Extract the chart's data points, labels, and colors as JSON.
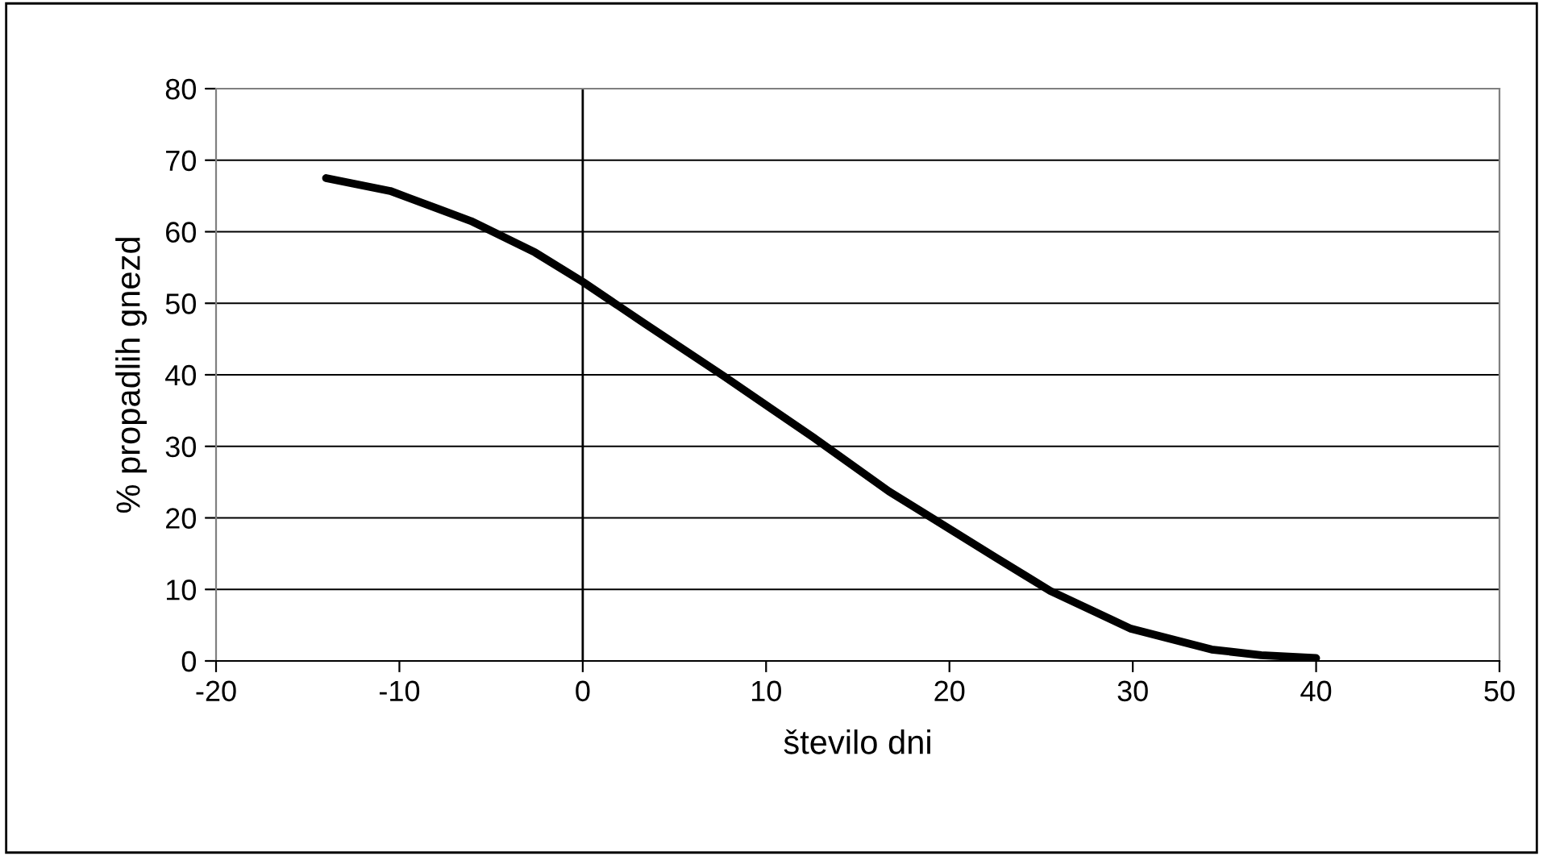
{
  "chart_data": {
    "type": "line",
    "xlabel": "število dni",
    "ylabel": "% propadlih gnezd",
    "x": [
      -14,
      -10.5,
      -6.1,
      -2.6,
      0,
      3.3,
      7.7,
      12.6,
      16.7,
      19.1,
      22.5,
      25.5,
      29.9,
      34.3,
      37,
      40
    ],
    "series": [
      {
        "color": "#000000",
        "values": [
          67.5,
          65.7,
          61.5,
          57.1,
          53,
          47.3,
          39.8,
          31.2,
          23.7,
          19.9,
          14.5,
          9.8,
          4.5,
          1.6,
          0.8,
          0.4
        ]
      }
    ],
    "xlim": [
      -20,
      50
    ],
    "ylim": [
      0,
      80
    ],
    "xticks": [
      -20,
      -10,
      0,
      10,
      20,
      30,
      40,
      50
    ],
    "yticks": [
      0,
      10,
      20,
      30,
      40,
      50,
      60,
      70,
      80
    ],
    "grid": "y",
    "marker": "none",
    "line_style": "solid",
    "legend": false,
    "ref_lines": [
      {
        "axis": "x",
        "value": 0,
        "label": null,
        "color": "#000000"
      }
    ]
  }
}
